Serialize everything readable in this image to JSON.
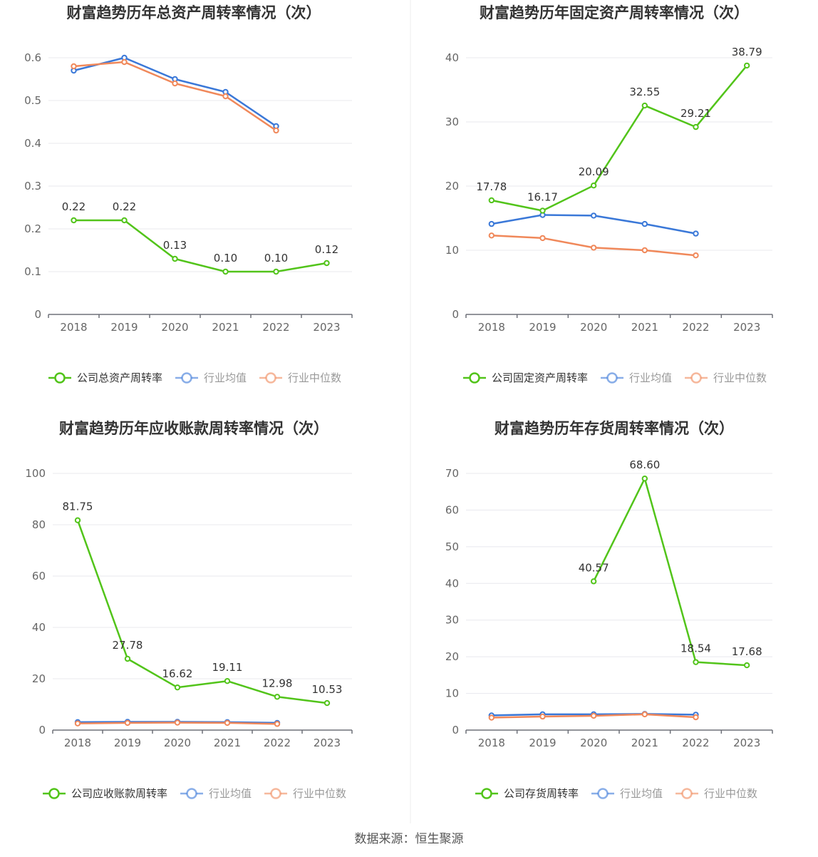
{
  "source_label": "数据来源：恒生聚源",
  "colors": {
    "company": "#52c41a",
    "industry_avg": "#3a78d8",
    "industry_median": "#f0885a"
  },
  "chart_data": [
    {
      "type": "line",
      "title": "财富趋势历年总资产周转率情况（次）",
      "categories": [
        "2018",
        "2019",
        "2020",
        "2021",
        "2022",
        "2023"
      ],
      "ylim": [
        0,
        0.6
      ],
      "yticks": [
        0,
        0.1,
        0.2,
        0.3,
        0.4,
        0.5,
        0.6
      ],
      "ytick_labels": [
        "0",
        "0.1",
        "0.2",
        "0.3",
        "0.4",
        "0.5",
        "0.6"
      ],
      "grid": true,
      "legend_position": "bottom",
      "series": [
        {
          "name": "公司总资产周转率",
          "role": "company",
          "values": [
            0.22,
            0.22,
            0.13,
            0.1,
            0.1,
            0.12
          ],
          "labels": [
            "0.22",
            "0.22",
            "0.13",
            "0.10",
            "0.10",
            "0.12"
          ]
        },
        {
          "name": "行业均值",
          "role": "industry_avg",
          "values": [
            0.57,
            0.6,
            0.55,
            0.52,
            0.44,
            null
          ]
        },
        {
          "name": "行业中位数",
          "role": "industry_median",
          "values": [
            0.58,
            0.59,
            0.54,
            0.51,
            0.43,
            null
          ]
        }
      ]
    },
    {
      "type": "line",
      "title": "财富趋势历年固定资产周转率情况（次）",
      "categories": [
        "2018",
        "2019",
        "2020",
        "2021",
        "2022",
        "2023"
      ],
      "ylim": [
        0,
        40
      ],
      "yticks": [
        0,
        10,
        20,
        30,
        40
      ],
      "ytick_labels": [
        "0",
        "10",
        "20",
        "30",
        "40"
      ],
      "grid": true,
      "legend_position": "bottom",
      "series": [
        {
          "name": "公司固定资产周转率",
          "role": "company",
          "values": [
            17.78,
            16.17,
            20.09,
            32.55,
            29.21,
            38.79
          ],
          "labels": [
            "17.78",
            "16.17",
            "20.09",
            "32.55",
            "29.21",
            "38.79"
          ]
        },
        {
          "name": "行业均值",
          "role": "industry_avg",
          "values": [
            14.1,
            15.5,
            15.4,
            14.1,
            12.6,
            null
          ]
        },
        {
          "name": "行业中位数",
          "role": "industry_median",
          "values": [
            12.3,
            11.9,
            10.4,
            10.0,
            9.2,
            null
          ]
        }
      ]
    },
    {
      "type": "line",
      "title": "财富趋势历年应收账款周转率情况（次）",
      "categories": [
        "2018",
        "2019",
        "2020",
        "2021",
        "2022",
        "2023"
      ],
      "ylim": [
        0,
        100
      ],
      "yticks": [
        0,
        20,
        40,
        60,
        80,
        100
      ],
      "ytick_labels": [
        "0",
        "20",
        "40",
        "60",
        "80",
        "100"
      ],
      "grid": true,
      "legend_position": "bottom",
      "series": [
        {
          "name": "公司应收账款周转率",
          "role": "company",
          "values": [
            81.75,
            27.78,
            16.62,
            19.11,
            12.98,
            10.53
          ],
          "labels": [
            "81.75",
            "27.78",
            "16.62",
            "19.11",
            "12.98",
            "10.53"
          ]
        },
        {
          "name": "行业均值",
          "role": "industry_avg",
          "values": [
            3.1,
            3.2,
            3.2,
            3.1,
            2.8,
            null
          ]
        },
        {
          "name": "行业中位数",
          "role": "industry_median",
          "values": [
            2.6,
            2.8,
            2.9,
            2.8,
            2.4,
            null
          ]
        }
      ]
    },
    {
      "type": "line",
      "title": "财富趋势历年存货周转率情况（次）",
      "categories": [
        "2018",
        "2019",
        "2020",
        "2021",
        "2022",
        "2023"
      ],
      "ylim": [
        0,
        70
      ],
      "yticks": [
        0,
        10,
        20,
        30,
        40,
        50,
        60,
        70
      ],
      "ytick_labels": [
        "0",
        "10",
        "20",
        "30",
        "40",
        "50",
        "60",
        "70"
      ],
      "grid": true,
      "legend_position": "bottom",
      "series": [
        {
          "name": "公司存货周转率",
          "role": "company",
          "values": [
            null,
            null,
            40.57,
            68.6,
            18.54,
            17.68
          ],
          "labels": [
            "",
            "",
            "40.57",
            "68.60",
            "18.54",
            "17.68"
          ]
        },
        {
          "name": "行业均值",
          "role": "industry_avg",
          "values": [
            4.0,
            4.3,
            4.3,
            4.4,
            4.2,
            null
          ]
        },
        {
          "name": "行业中位数",
          "role": "industry_median",
          "values": [
            3.4,
            3.7,
            3.9,
            4.3,
            3.5,
            null
          ]
        }
      ]
    }
  ]
}
